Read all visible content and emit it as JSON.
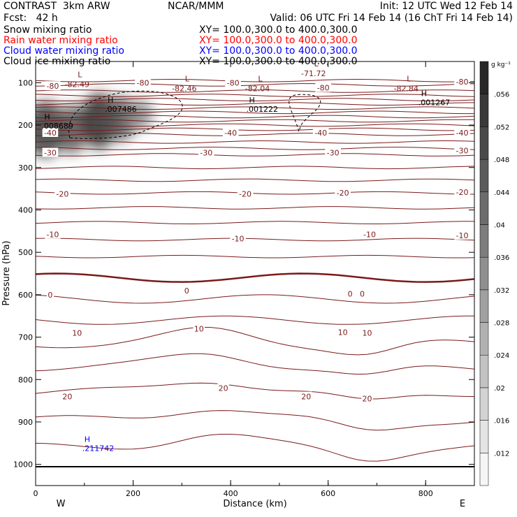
{
  "header": {
    "left_title": "CONTRAST  3km ARW",
    "center_title": "NCAR/MMM",
    "init": "Init: 12 UTC Wed 12 Feb 14",
    "fcst": "Fcst:   42 h",
    "valid": "Valid: 06 UTC Fri 14 Feb 14 (16 ChT Fri 14 Feb 14)"
  },
  "fields": [
    {
      "name": "Snow mixing ratio",
      "xy": "XY= 100.0,300.0 to 400.0,300.0",
      "color": "#000000"
    },
    {
      "name": "Rain water mixing ratio",
      "xy": "XY= 100.0,300.0 to 400.0,300.0",
      "color": "#ff0000"
    },
    {
      "name": "Cloud water mixing ratio",
      "xy": "XY= 100.0,300.0 to 400.0,300.0",
      "color": "#0000ff"
    },
    {
      "name": "Cloud ice mixing ratio",
      "xy": "XY= 100.0,300.0 to 400.0,300.0",
      "color": "#000000"
    }
  ],
  "chart_data": {
    "type": "heatmap",
    "xlabel": "Distance (km)",
    "ylabel": "Pressure (hPa)",
    "xlim": [
      0,
      900
    ],
    "ylim": [
      1050,
      50
    ],
    "x_ticks": [
      0,
      200,
      400,
      600,
      800
    ],
    "y_ticks": [
      100,
      200,
      300,
      400,
      500,
      600,
      700,
      800,
      900,
      1000
    ],
    "direction_labels": {
      "left": "W",
      "right": "E"
    },
    "colorbar": {
      "unit": "g kg⁻¹",
      "ticks": [
        ".012",
        ".016",
        ".02",
        ".024",
        ".028",
        ".032",
        ".036",
        ".04",
        ".044",
        ".048",
        ".052",
        ".056"
      ],
      "min": 0.008,
      "max": 0.06
    },
    "snow_maxima": [
      {
        "x": 35,
        "p": 200,
        "label": "H",
        "value": ".008689"
      },
      {
        "x": 165,
        "p": 160,
        "label": "H",
        "value": ".007486"
      },
      {
        "x": 455,
        "p": 160,
        "label": "H",
        "value": ".001222"
      },
      {
        "x": 808,
        "p": 145,
        "label": "H",
        "value": ".001267"
      }
    ],
    "cloud_water_maxima": [
      {
        "x": 100,
        "p": 960,
        "label": "H",
        "value": ".211742"
      }
    ],
    "temperature_minima": [
      {
        "x": 85,
        "p": 100,
        "label": "L",
        "value": "-82.49"
      },
      {
        "x": 305,
        "p": 110,
        "label": "L",
        "value": "-82.46"
      },
      {
        "x": 455,
        "p": 110,
        "label": "L",
        "value": "-82.04"
      },
      {
        "x": 570,
        "p": 75,
        "label": "L",
        "value": "-71.72"
      },
      {
        "x": 760,
        "p": 110,
        "label": "L",
        "value": "-82.84"
      }
    ],
    "isotherm_labels": [
      {
        "x": 35,
        "p": 108,
        "value": "-80"
      },
      {
        "x": 220,
        "p": 100,
        "value": "-80"
      },
      {
        "x": 405,
        "p": 100,
        "value": "-80"
      },
      {
        "x": 590,
        "p": 112,
        "value": "-80"
      },
      {
        "x": 875,
        "p": 98,
        "value": "-80"
      },
      {
        "x": 30,
        "p": 218,
        "value": "-40"
      },
      {
        "x": 400,
        "p": 218,
        "value": "-40"
      },
      {
        "x": 585,
        "p": 218,
        "value": "-40"
      },
      {
        "x": 875,
        "p": 218,
        "value": "-40"
      },
      {
        "x": 30,
        "p": 265,
        "value": "-30"
      },
      {
        "x": 350,
        "p": 265,
        "value": "-30"
      },
      {
        "x": 610,
        "p": 265,
        "value": "-30"
      },
      {
        "x": 875,
        "p": 260,
        "value": "-30"
      },
      {
        "x": 55,
        "p": 362,
        "value": "-20"
      },
      {
        "x": 430,
        "p": 362,
        "value": "-20"
      },
      {
        "x": 630,
        "p": 360,
        "value": "-20"
      },
      {
        "x": 875,
        "p": 358,
        "value": "-20"
      },
      {
        "x": 35,
        "p": 458,
        "value": "-10"
      },
      {
        "x": 415,
        "p": 468,
        "value": "-10"
      },
      {
        "x": 685,
        "p": 458,
        "value": "-10"
      },
      {
        "x": 875,
        "p": 460,
        "value": "-10"
      },
      {
        "x": 30,
        "p": 600,
        "value": "0"
      },
      {
        "x": 310,
        "p": 590,
        "value": "0"
      },
      {
        "x": 645,
        "p": 598,
        "value": "0"
      },
      {
        "x": 670,
        "p": 598,
        "value": "0"
      },
      {
        "x": 85,
        "p": 690,
        "value": "10"
      },
      {
        "x": 335,
        "p": 680,
        "value": "10"
      },
      {
        "x": 630,
        "p": 688,
        "value": "10"
      },
      {
        "x": 680,
        "p": 690,
        "value": "10"
      },
      {
        "x": 65,
        "p": 840,
        "value": "20"
      },
      {
        "x": 385,
        "p": 820,
        "value": "20"
      },
      {
        "x": 555,
        "p": 840,
        "value": "20"
      },
      {
        "x": 680,
        "p": 845,
        "value": "20"
      }
    ]
  }
}
